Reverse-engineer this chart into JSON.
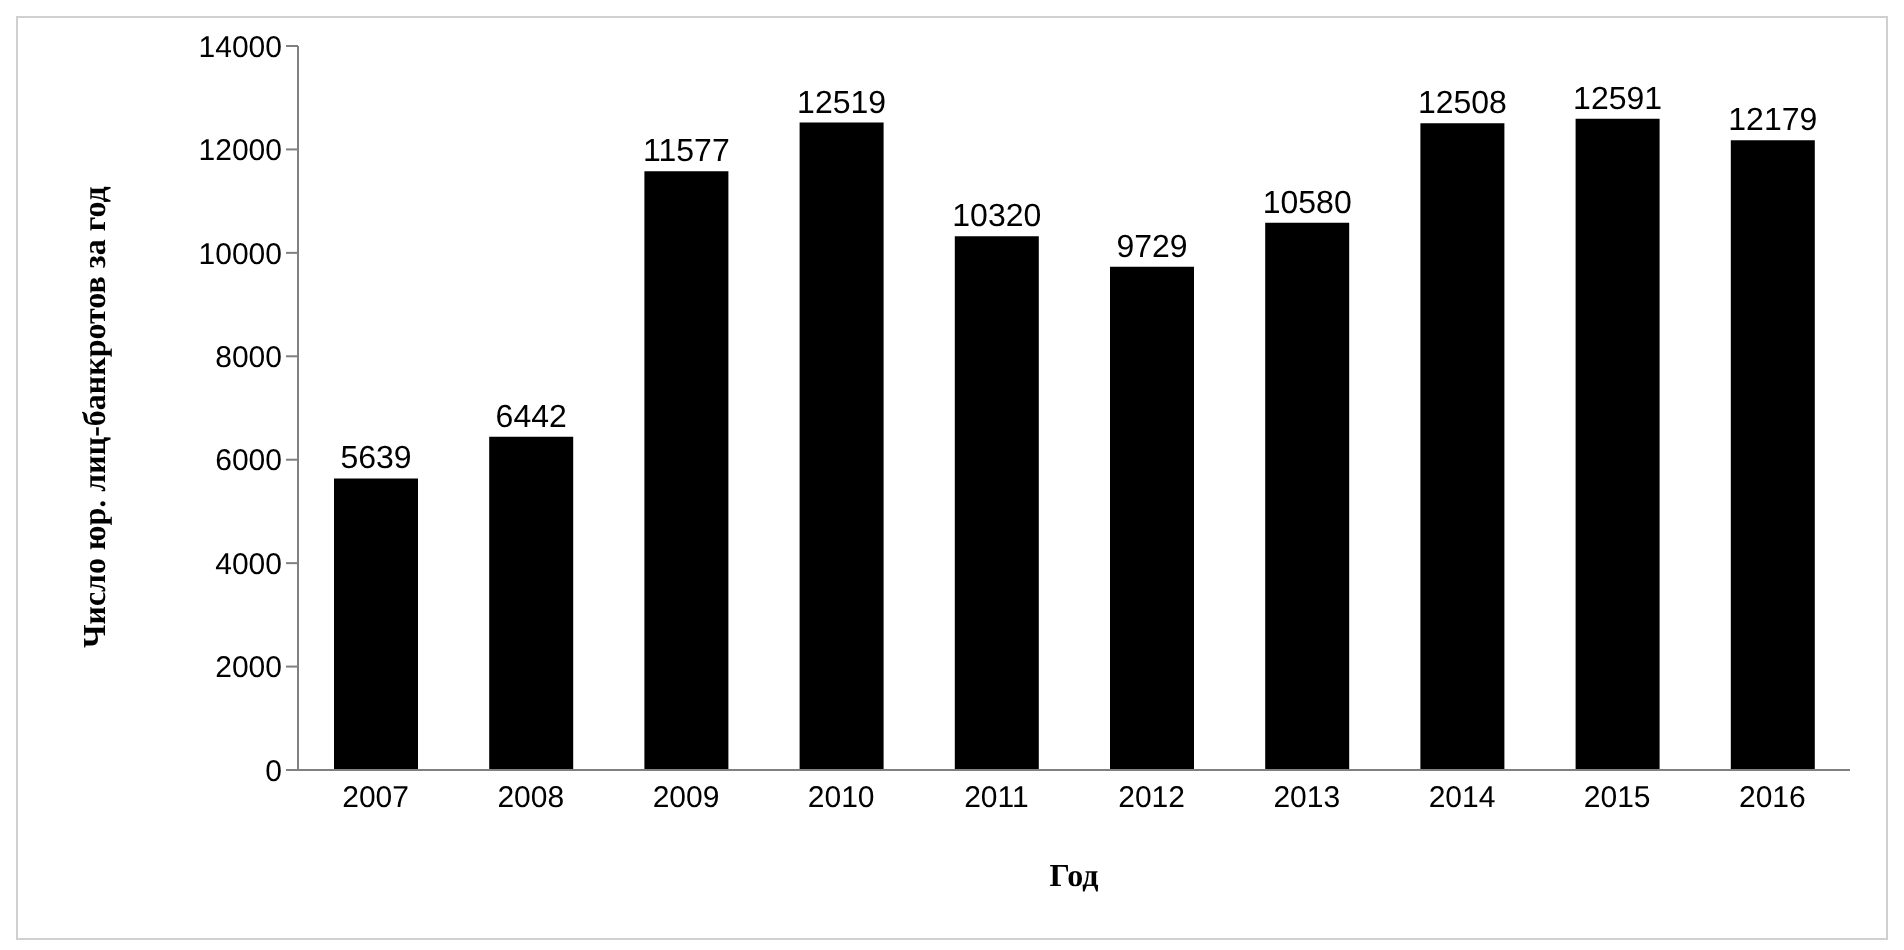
{
  "chart_data": {
    "type": "bar",
    "xlabel": "Год",
    "ylabel": "Число юр. лиц-банкротов за год",
    "categories": [
      "2007",
      "2008",
      "2009",
      "2010",
      "2011",
      "2012",
      "2013",
      "2014",
      "2015",
      "2016"
    ],
    "values": [
      5639,
      6442,
      11577,
      12519,
      10320,
      9729,
      10580,
      12508,
      12591,
      12179
    ],
    "color": "#000000",
    "ylim": [
      0,
      14000
    ],
    "yticks": [
      0,
      2000,
      4000,
      6000,
      8000,
      10000,
      12000,
      14000
    ],
    "grid": false,
    "legend": false,
    "data_labels": true
  }
}
